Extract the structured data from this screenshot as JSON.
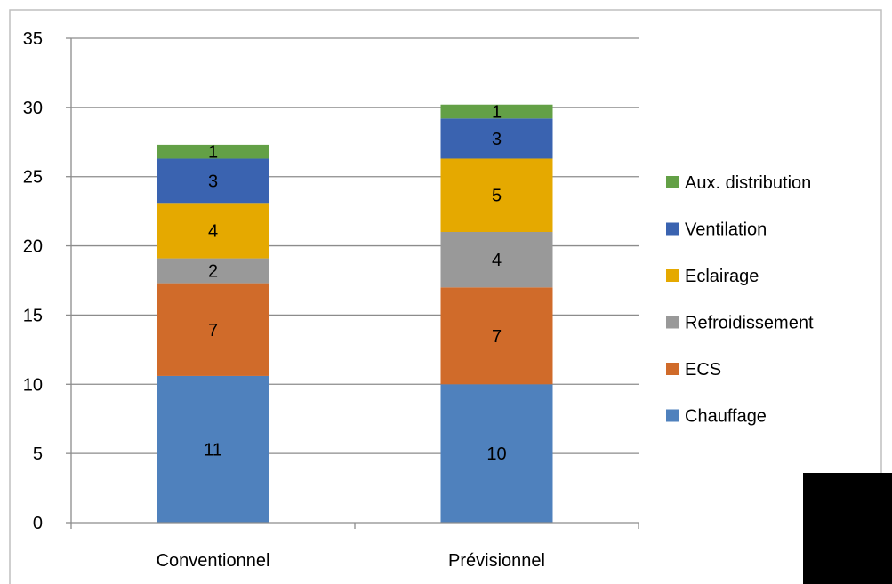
{
  "chart_data": {
    "type": "bar",
    "stacked": true,
    "categories": [
      "Conventionnel",
      "Prévisionnel"
    ],
    "series": [
      {
        "name": "Chauffage",
        "color": "#4f81bd",
        "values": [
          10.6,
          10.0
        ],
        "labels": [
          "11",
          "10"
        ]
      },
      {
        "name": "ECS",
        "color": "#d06b2a",
        "values": [
          6.7,
          7.0
        ],
        "labels": [
          "7",
          "7"
        ]
      },
      {
        "name": "Refroidissement",
        "color": "#999999",
        "values": [
          1.8,
          4.0
        ],
        "labels": [
          "2",
          "4"
        ]
      },
      {
        "name": "Eclairage",
        "color": "#e5a900",
        "values": [
          4.0,
          5.3
        ],
        "labels": [
          "4",
          "5"
        ]
      },
      {
        "name": "Ventilation",
        "color": "#3a63b0",
        "values": [
          3.2,
          2.9
        ],
        "labels": [
          "3",
          "3"
        ]
      },
      {
        "name": "Aux. distribution",
        "color": "#63a046",
        "values": [
          1.0,
          1.0
        ],
        "labels": [
          "1",
          "1"
        ]
      }
    ],
    "ylim": [
      0,
      35
    ],
    "yticks": [
      0,
      5,
      10,
      15,
      20,
      25,
      30,
      35
    ],
    "title": "",
    "xlabel": "",
    "ylabel": "",
    "grid": true,
    "legend_position": "right",
    "legend_order": "reverse"
  }
}
